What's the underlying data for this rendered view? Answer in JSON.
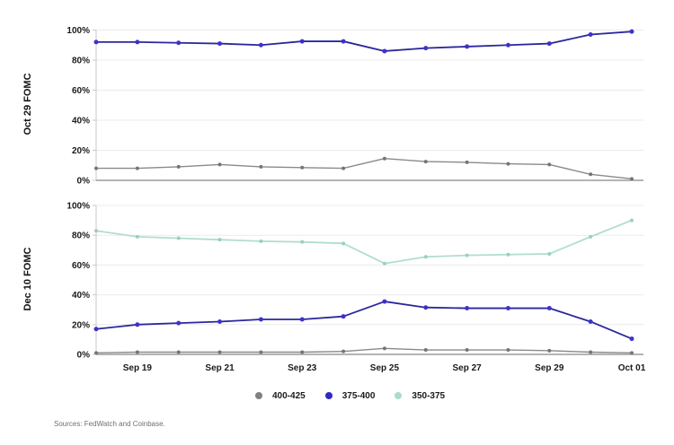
{
  "chart_data": {
    "type": "line",
    "x": [
      "Sep 18",
      "Sep 19",
      "Sep 20",
      "Sep 21",
      "Sep 22",
      "Sep 23",
      "Sep 24",
      "Sep 25",
      "Sep 26",
      "Sep 27",
      "Sep 28",
      "Sep 29",
      "Sep 30",
      "Oct 01"
    ],
    "xtick_labels": [
      "Sep 19",
      "Sep 21",
      "Sep 23",
      "Sep 25",
      "Sep 27",
      "Sep 29",
      "Oct 01"
    ],
    "xtick_indices": [
      1,
      3,
      5,
      7,
      9,
      11,
      13
    ],
    "ytick_labels": [
      "0%",
      "20%",
      "40%",
      "60%",
      "80%",
      "100%"
    ],
    "ytick_values": [
      0,
      20,
      40,
      60,
      80,
      100
    ],
    "ylim": [
      0,
      100
    ],
    "grid": "horizontal",
    "legend_position": "bottom",
    "colors": {
      "gridline": "#ebebeb",
      "zero_axis": "#9b9b9b",
      "left_axis": "#c9c9c9",
      "tick_label": "#1a1a1a"
    },
    "panels": [
      {
        "label": "Oct 29 FOMC",
        "series": [
          {
            "name": "375-400",
            "line": "#2b279b",
            "marker": "#3c33cc",
            "values": [
              92,
              92,
              91.5,
              91,
              90,
              92.5,
              92.5,
              86,
              88,
              89,
              90,
              91,
              97,
              99
            ]
          },
          {
            "name": "400-425",
            "line": "#8a8a8a",
            "marker": "#757575",
            "values": [
              8,
              8,
              9,
              10.5,
              9,
              8.5,
              8,
              14.5,
              12.5,
              12,
              11,
              10.5,
              4,
              1
            ]
          }
        ]
      },
      {
        "label": "Dec 10 FOMC",
        "series": [
          {
            "name": "350-375",
            "line": "#b0ddd3",
            "marker": "#99cfc3",
            "values": [
              83,
              79,
              78,
              77,
              76,
              75.5,
              74.5,
              61,
              65.5,
              66.5,
              67,
              67.5,
              79,
              90
            ]
          },
          {
            "name": "375-400",
            "line": "#2b279b",
            "marker": "#3c33cc",
            "values": [
              17,
              20,
              21,
              22,
              23.5,
              23.5,
              25.5,
              35.5,
              31.5,
              31,
              31,
              31,
              22,
              10.5
            ]
          },
          {
            "name": "400-425",
            "line": "#8a8a8a",
            "marker": "#757575",
            "values": [
              1,
              1.5,
              1.5,
              1.5,
              1.5,
              1.5,
              2,
              4,
              3,
              3,
              3,
              2.5,
              1.5,
              1
            ]
          }
        ]
      }
    ]
  },
  "legend": {
    "items": [
      {
        "label": "400-425",
        "color": "#808080"
      },
      {
        "label": "375-400",
        "color": "#3129c4"
      },
      {
        "label": "350-375",
        "color": "#abdad0"
      }
    ]
  },
  "source": "Sources: FedWatch and Coinbase."
}
